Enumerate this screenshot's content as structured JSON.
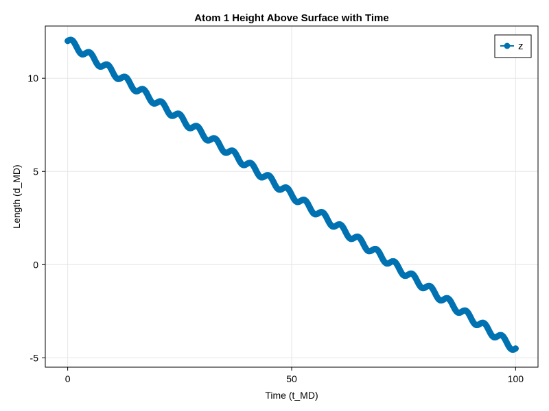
{
  "chart_data": {
    "type": "line",
    "title": "Atom 1 Height Above Surface with Time",
    "xlabel": "Time (t_MD)",
    "ylabel": "Length (d_MD)",
    "xlim": [
      -5,
      105
    ],
    "ylim": [
      -5.5,
      12.8
    ],
    "xticks": [
      0,
      50,
      100
    ],
    "xtick_labels": [
      "0",
      "50",
      "100"
    ],
    "yticks": [
      -5,
      0,
      5,
      10
    ],
    "ytick_labels": [
      "-5",
      "0",
      "5",
      "10"
    ],
    "grid": true,
    "legend_position": "top-right",
    "series": [
      {
        "name": "z",
        "color": "#0072b2",
        "marker": "circle",
        "start": [
          0,
          12.0
        ],
        "end": [
          100,
          -4.5
        ],
        "oscillation_amplitude": 0.2,
        "oscillation_period": 4.0,
        "num_samples": 1001
      }
    ]
  }
}
